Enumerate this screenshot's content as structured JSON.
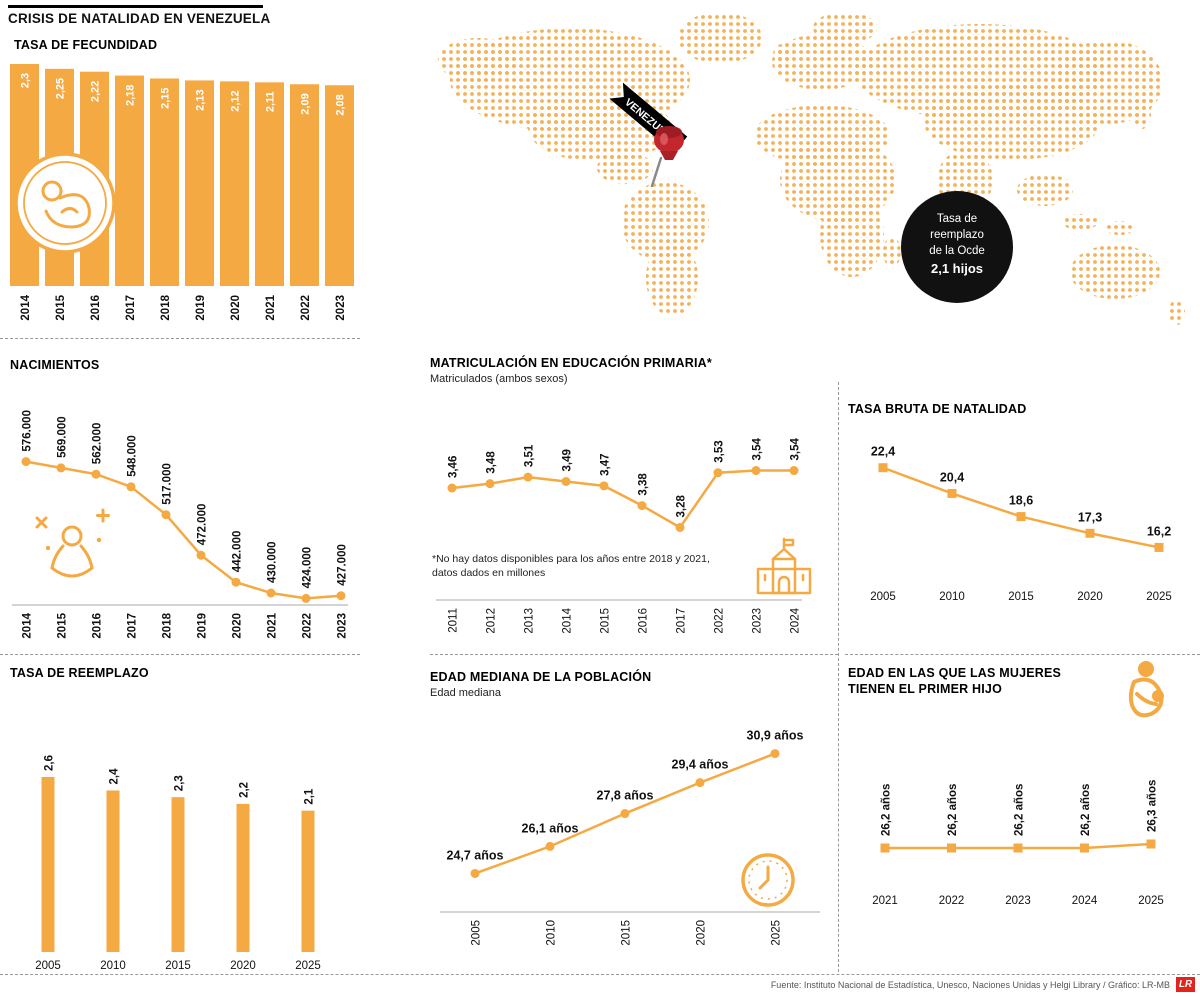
{
  "page": {
    "title": "CRISIS DE NATALIDAD EN VENEZUELA",
    "footer": "Fuente:  Instituto Nacional de Estadística, Unesco, Naciones Unidas y Helgi Library / Gráfico: LR-MB",
    "logo": "LR"
  },
  "colors": {
    "accent": "#F5A942",
    "map_dots": "#F3B158",
    "pin_red": "#C1272D",
    "badge_bg": "#111111",
    "logo_red": "#E1251B"
  },
  "map": {
    "pin_label": "VENEZUELA",
    "badge_lines": [
      "Tasa de",
      "reemplazo",
      "de la Ocde",
      "2,1 hijos"
    ]
  },
  "icons": [
    "baby-icon",
    "newborn-hands-icon",
    "school-icon",
    "clock-icon",
    "mother-child-icon",
    "map-pin-icon"
  ],
  "chart_data": [
    {
      "id": "fecundidad",
      "type": "bar",
      "title": "TASA DE FECUNDIDAD",
      "categories": [
        "2014",
        "2015",
        "2016",
        "2017",
        "2018",
        "2019",
        "2020",
        "2021",
        "2022",
        "2023"
      ],
      "values": [
        2.3,
        2.25,
        2.22,
        2.18,
        2.15,
        2.13,
        2.12,
        2.11,
        2.09,
        2.08
      ],
      "labels": [
        "2,3",
        "2,25",
        "2,22",
        "2,18",
        "2,15",
        "2,13",
        "2,12",
        "2,11",
        "2,09",
        "2,08"
      ],
      "ylim": [
        0,
        2.3
      ]
    },
    {
      "id": "nacimientos",
      "type": "line",
      "title": "NACIMIENTOS",
      "categories": [
        "2014",
        "2015",
        "2016",
        "2017",
        "2018",
        "2019",
        "2020",
        "2021",
        "2022",
        "2023"
      ],
      "values": [
        576000,
        569000,
        562000,
        548000,
        517000,
        472000,
        442000,
        430000,
        424000,
        427000
      ],
      "labels": [
        "576.000",
        "569.000",
        "562.000",
        "548.000",
        "517.000",
        "472.000",
        "442.000",
        "430.000",
        "424.000",
        "427.000"
      ]
    },
    {
      "id": "matriculacion",
      "type": "line",
      "title": "MATRICULACIÓN EN EDUCACIÓN PRIMARIA*",
      "subtitle": "Matriculados (ambos sexos)",
      "footnote": "*No hay datos disponibles para los años entre 2018 y 2021, datos dados en millones",
      "categories": [
        "2011",
        "2012",
        "2013",
        "2014",
        "2015",
        "2016",
        "2017",
        "2022",
        "2023",
        "2024"
      ],
      "values": [
        3.46,
        3.48,
        3.51,
        3.49,
        3.47,
        3.38,
        3.28,
        3.53,
        3.54,
        3.54
      ],
      "labels": [
        "3,46",
        "3,48",
        "3,51",
        "3,49",
        "3,47",
        "3,38",
        "3,28",
        "3,53",
        "3,54",
        "3,54"
      ]
    },
    {
      "id": "natalidad",
      "type": "line",
      "title": "TASA BRUTA DE NATALIDAD",
      "categories": [
        "2005",
        "2010",
        "2015",
        "2020",
        "2025"
      ],
      "values": [
        22.4,
        20.4,
        18.6,
        17.3,
        16.2
      ],
      "labels": [
        "22,4",
        "20,4",
        "18,6",
        "17,3",
        "16,2"
      ]
    },
    {
      "id": "reemplazo",
      "type": "bar",
      "title": "TASA DE REEMPLAZO",
      "categories": [
        "2005",
        "2010",
        "2015",
        "2020",
        "2025"
      ],
      "values": [
        2.6,
        2.4,
        2.3,
        2.2,
        2.1
      ],
      "labels": [
        "2,6",
        "2,4",
        "2,3",
        "2,2",
        "2,1"
      ],
      "ylim": [
        0,
        2.6
      ]
    },
    {
      "id": "edad_mediana",
      "type": "line",
      "title": "EDAD MEDIANA DE LA POBLACIÓN",
      "subtitle": "Edad mediana",
      "categories": [
        "2005",
        "2010",
        "2015",
        "2020",
        "2025"
      ],
      "values": [
        24.7,
        26.1,
        27.8,
        29.4,
        30.9
      ],
      "labels": [
        "24,7 años",
        "26,1 años",
        "27,8 años",
        "29,4 años",
        "30,9 años"
      ]
    },
    {
      "id": "primer_hijo",
      "type": "line",
      "title": "EDAD EN LAS QUE LAS MUJERES TIENEN EL PRIMER HIJO",
      "categories": [
        "2021",
        "2022",
        "2023",
        "2024",
        "2025"
      ],
      "values": [
        26.2,
        26.2,
        26.2,
        26.2,
        26.3
      ],
      "labels": [
        "26,2 años",
        "26,2 años",
        "26,2 años",
        "26,2 años",
        "26,3 años"
      ]
    }
  ]
}
